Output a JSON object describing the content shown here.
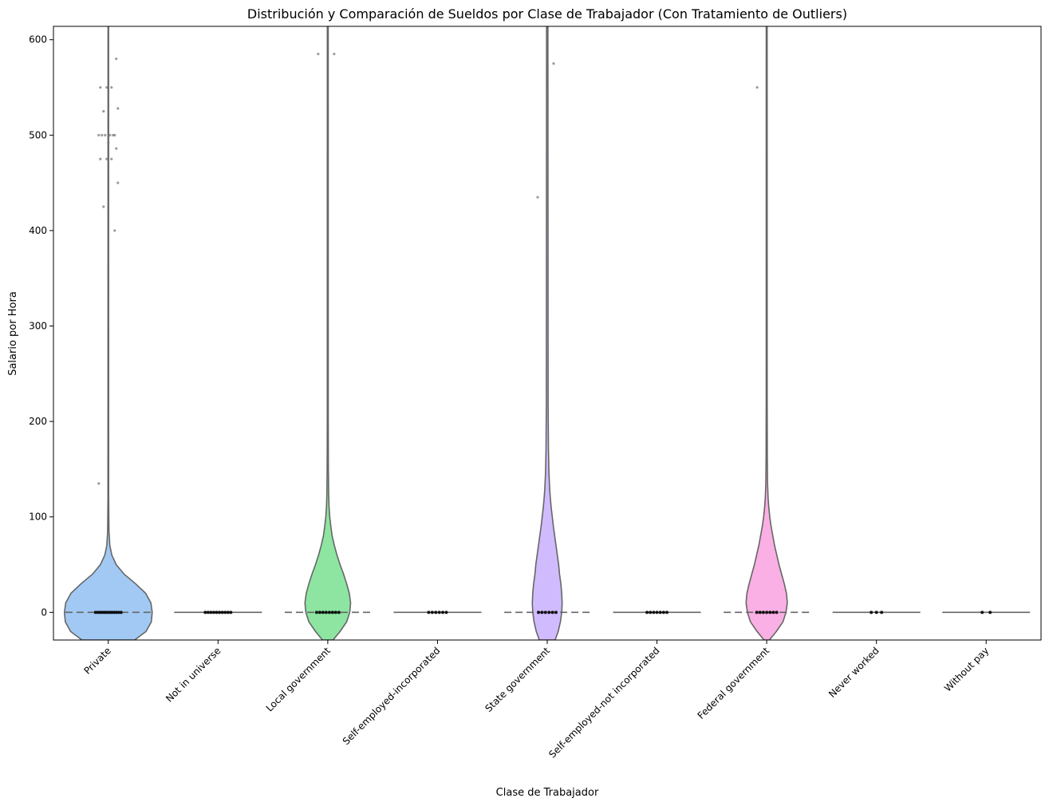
{
  "chart_data": {
    "type": "violin",
    "title": "Distribución y Comparación de Sueldos por Clase de Trabajador (Con Tratamiento de Outliers)",
    "xlabel": "Clase de Trabajador",
    "ylabel": "Salario por Hora",
    "ylim": [
      -29,
      614
    ],
    "yticks": [
      0,
      100,
      200,
      300,
      400,
      500,
      600
    ],
    "categories": [
      {
        "name": "Private",
        "color": "#a1c9f4",
        "max_value": 614,
        "density": [
          [
            -29,
            0.6
          ],
          [
            -20,
            0.86
          ],
          [
            -10,
            0.98
          ],
          [
            0,
            1.0
          ],
          [
            10,
            0.97
          ],
          [
            20,
            0.85
          ],
          [
            30,
            0.62
          ],
          [
            40,
            0.36
          ],
          [
            50,
            0.18
          ],
          [
            60,
            0.08
          ],
          [
            70,
            0.035
          ],
          [
            85,
            0.015
          ],
          [
            120,
            0.008
          ],
          [
            614,
            0.006
          ]
        ],
        "points": [
          0,
          0,
          0,
          0,
          0,
          0,
          0,
          0,
          0,
          0,
          0,
          0,
          135,
          400,
          425,
          450,
          475,
          475,
          475,
          486,
          492,
          500,
          500,
          500,
          500,
          500,
          500,
          525,
          528,
          550,
          550,
          550,
          580
        ]
      },
      {
        "name": "Not in universe",
        "color": "#8de5a1",
        "max_value": 0,
        "density": [],
        "points": [
          0,
          0,
          0,
          0,
          0,
          0,
          0,
          0,
          0,
          0
        ]
      },
      {
        "name": "Local government",
        "color": "#8de5a1",
        "max_value": 614,
        "density": [
          [
            -29,
            0.12
          ],
          [
            -20,
            0.28
          ],
          [
            -10,
            0.43
          ],
          [
            0,
            0.5
          ],
          [
            10,
            0.52
          ],
          [
            20,
            0.49
          ],
          [
            30,
            0.43
          ],
          [
            40,
            0.36
          ],
          [
            50,
            0.28
          ],
          [
            60,
            0.21
          ],
          [
            70,
            0.15
          ],
          [
            80,
            0.1
          ],
          [
            90,
            0.07
          ],
          [
            100,
            0.045
          ],
          [
            110,
            0.03
          ],
          [
            125,
            0.02
          ],
          [
            150,
            0.014
          ],
          [
            200,
            0.011
          ],
          [
            614,
            0.01
          ]
        ],
        "points": [
          0,
          0,
          0,
          0,
          0,
          0,
          0,
          0,
          585,
          585
        ]
      },
      {
        "name": "Self-employed-incorporated",
        "color": "#ff9f9b",
        "max_value": 0,
        "density": [],
        "points": [
          0,
          0,
          0,
          0,
          0,
          0
        ]
      },
      {
        "name": "State government",
        "color": "#d0bbff",
        "max_value": 614,
        "density": [
          [
            -29,
            0.18
          ],
          [
            -20,
            0.25
          ],
          [
            -10,
            0.3
          ],
          [
            0,
            0.33
          ],
          [
            10,
            0.34
          ],
          [
            20,
            0.33
          ],
          [
            30,
            0.31
          ],
          [
            40,
            0.28
          ],
          [
            50,
            0.26
          ],
          [
            60,
            0.23
          ],
          [
            70,
            0.2
          ],
          [
            80,
            0.17
          ],
          [
            90,
            0.14
          ],
          [
            100,
            0.115
          ],
          [
            110,
            0.09
          ],
          [
            120,
            0.07
          ],
          [
            130,
            0.055
          ],
          [
            145,
            0.04
          ],
          [
            170,
            0.028
          ],
          [
            220,
            0.02
          ],
          [
            614,
            0.015
          ]
        ],
        "points": [
          0,
          0,
          0,
          0,
          0,
          0,
          435,
          575
        ]
      },
      {
        "name": "Self-employed-not incorporated",
        "color": "#debb9b",
        "max_value": 0,
        "density": [],
        "points": [
          0,
          0,
          0,
          0,
          0,
          0,
          0
        ]
      },
      {
        "name": "Federal government",
        "color": "#fab0e4",
        "max_value": 614,
        "density": [
          [
            -29,
            0.06
          ],
          [
            -20,
            0.22
          ],
          [
            -10,
            0.37
          ],
          [
            0,
            0.44
          ],
          [
            10,
            0.47
          ],
          [
            20,
            0.45
          ],
          [
            30,
            0.4
          ],
          [
            40,
            0.34
          ],
          [
            50,
            0.28
          ],
          [
            60,
            0.23
          ],
          [
            70,
            0.18
          ],
          [
            80,
            0.14
          ],
          [
            90,
            0.1
          ],
          [
            100,
            0.07
          ],
          [
            110,
            0.048
          ],
          [
            120,
            0.032
          ],
          [
            135,
            0.02
          ],
          [
            160,
            0.014
          ],
          [
            220,
            0.011
          ],
          [
            614,
            0.01
          ]
        ],
        "points": [
          0,
          0,
          0,
          0,
          0,
          0,
          0,
          550
        ]
      },
      {
        "name": "Never worked",
        "color": "#cfcfcf",
        "max_value": 0,
        "density": [],
        "points": [
          0,
          0,
          0
        ]
      },
      {
        "name": "Without pay",
        "color": "#fffea3",
        "max_value": 0,
        "density": [],
        "points": [
          0,
          0
        ]
      }
    ]
  }
}
